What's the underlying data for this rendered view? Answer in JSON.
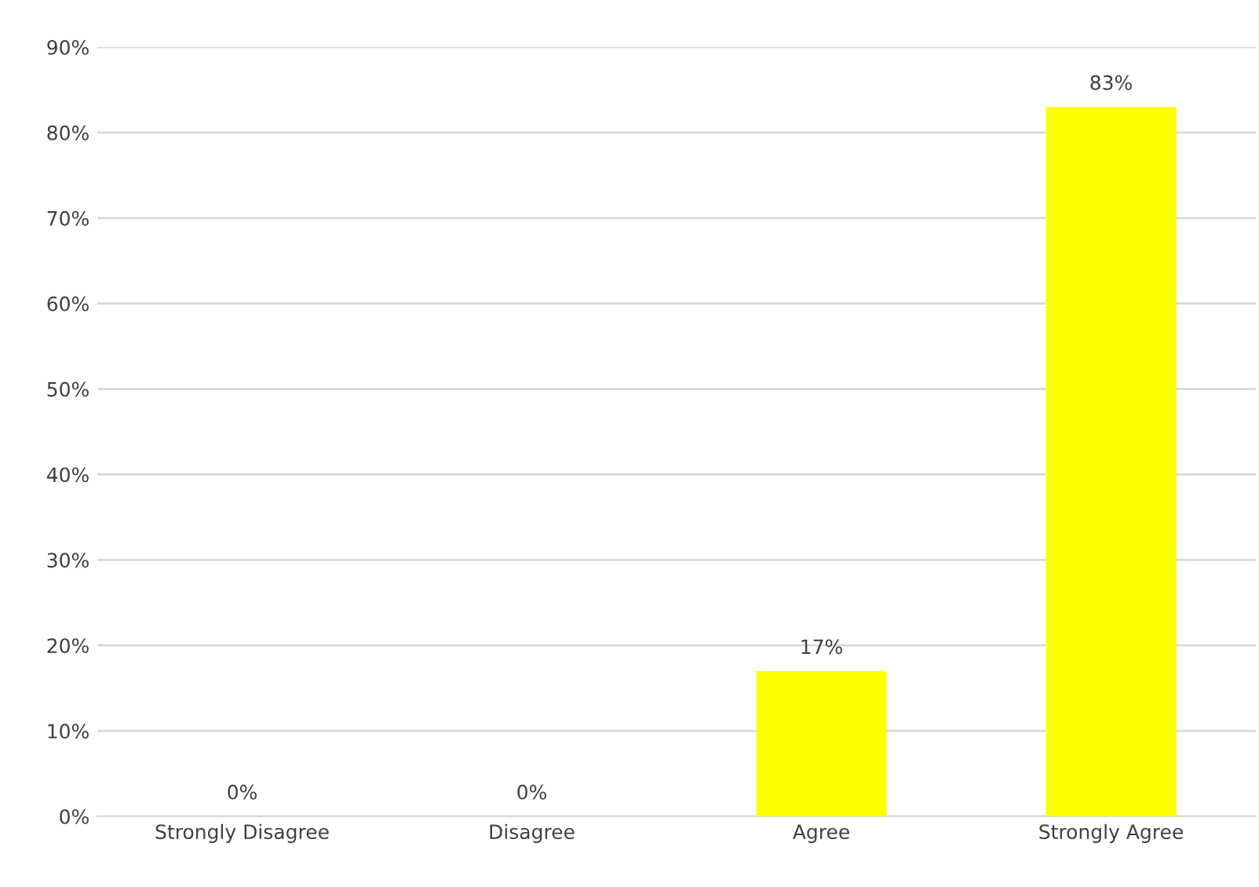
{
  "chart_data": {
    "type": "bar",
    "categories": [
      "Strongly Disagree",
      "Disagree",
      "Agree",
      "Strongly Agree"
    ],
    "values": [
      0,
      0,
      17,
      83
    ],
    "value_labels": [
      "0%",
      "0%",
      "17%",
      "83%"
    ],
    "color": "#ffff00",
    "ylim": [
      0,
      90
    ],
    "yticks": [
      {
        "value": 0,
        "label": "0%"
      },
      {
        "value": 10,
        "label": "10%"
      },
      {
        "value": 20,
        "label": "20%"
      },
      {
        "value": 30,
        "label": "30%"
      },
      {
        "value": 40,
        "label": "40%"
      },
      {
        "value": 50,
        "label": "50%"
      },
      {
        "value": 60,
        "label": "60%"
      },
      {
        "value": 70,
        "label": "70%"
      },
      {
        "value": 80,
        "label": "80%"
      },
      {
        "value": 90,
        "label": "90%"
      }
    ],
    "grid": "y",
    "legend": false
  }
}
